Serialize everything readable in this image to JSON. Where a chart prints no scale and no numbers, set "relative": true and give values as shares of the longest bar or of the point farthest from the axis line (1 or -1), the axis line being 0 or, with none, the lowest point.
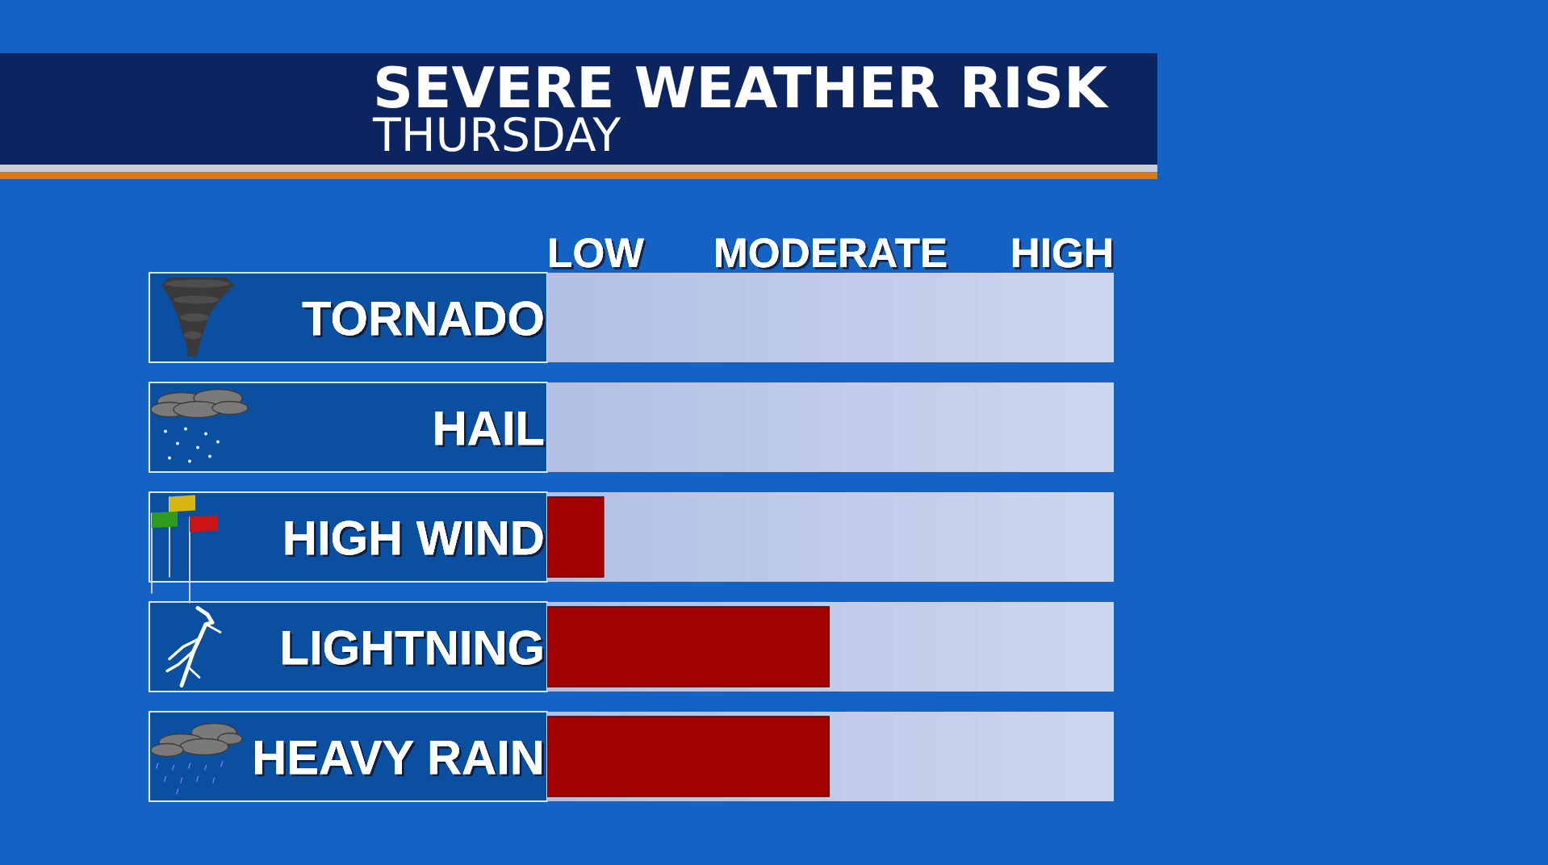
{
  "chart_data": {
    "type": "bar",
    "orientation": "horizontal",
    "relative": true,
    "title": "SEVERE WEATHER RISK",
    "subtitle": "THURSDAY",
    "categories": [
      "TORNADO",
      "HAIL",
      "HIGH WIND",
      "LIGHTNING",
      "HEAVY RAIN"
    ],
    "values": [
      0,
      0,
      0.2,
      1,
      1
    ],
    "color": "#a30000",
    "annotations": [
      "LOW",
      "MODERATE",
      "HIGH"
    ]
  }
}
